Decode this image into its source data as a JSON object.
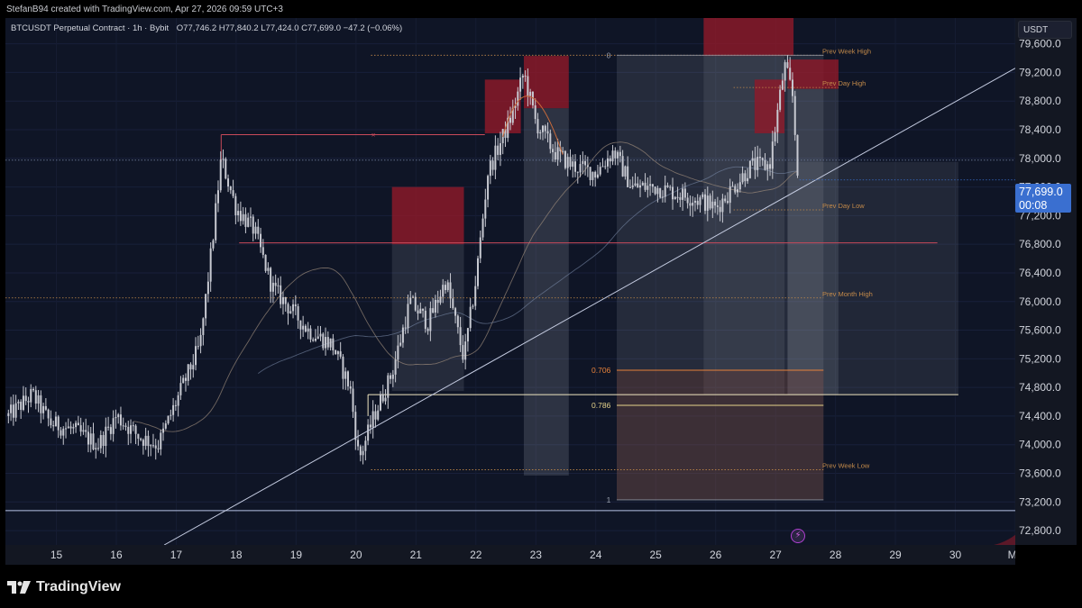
{
  "header": {
    "credit": "StefanB94 created with TradingView.com, Apr 27, 2026 09:59 UTC+3",
    "symbol": "BTCUSDT Perpetual Contract · 1h · Bybit",
    "ohlc": "O77,746.2  H77,840.2  L77,424.0  C77,699.0  −47.2 (−0.06%)"
  },
  "price_axis": {
    "currency": "USDT",
    "last_price": "77,699.0",
    "countdown": "00:08"
  },
  "footer": {
    "brand": "TradingView"
  },
  "colors": {
    "background": "#0f1526",
    "candle": "#c8cad2",
    "supply_zone": "#8e1a2a",
    "fib_orange": "#e8823a",
    "fib_yellow": "#e6d38a",
    "level_label": "#c38a4a",
    "trendline": "#c4cbe0"
  },
  "chart_data": {
    "type": "candlestick",
    "symbol": "BTCUSDT",
    "interval": "1h",
    "exchange": "Bybit",
    "ylim": [
      72600,
      79960
    ],
    "y_ticks": [
      72800,
      73200,
      73600,
      74000,
      74400,
      74800,
      75200,
      75600,
      76000,
      76400,
      76800,
      77200,
      77600,
      78000,
      78400,
      78800,
      79200,
      79600
    ],
    "y_tick_labels": [
      "72,800.0",
      "73,200.0",
      "73,600.0",
      "74,000.0",
      "74,400.0",
      "74,800.0",
      "75,200.0",
      "75,600.0",
      "76,000.0",
      "76,400.0",
      "76,800.0",
      "77,200.0",
      "77,600.0",
      "78,000.0",
      "78,400.0",
      "78,800.0",
      "79,200.0",
      "79,600.0"
    ],
    "xlim": [
      14.15,
      31.0
    ],
    "x_ticks": [
      15,
      16,
      17,
      18,
      19,
      20,
      21,
      22,
      23,
      24,
      25,
      26,
      27,
      28,
      29,
      30,
      31
    ],
    "x_tick_labels": [
      "15",
      "16",
      "17",
      "18",
      "19",
      "20",
      "21",
      "22",
      "23",
      "24",
      "25",
      "26",
      "27",
      "28",
      "29",
      "30",
      "Ma"
    ],
    "last_price": 77699.0,
    "daily_path": [
      [
        14.2,
        74400
      ],
      [
        14.6,
        74700
      ],
      [
        14.9,
        74300
      ],
      [
        15.3,
        74200
      ],
      [
        15.7,
        74000
      ],
      [
        16.0,
        74400
      ],
      [
        16.4,
        74100
      ],
      [
        16.7,
        74000
      ],
      [
        17.0,
        74600
      ],
      [
        17.4,
        75400
      ],
      [
        17.6,
        76800
      ],
      [
        17.75,
        78000
      ],
      [
        18.0,
        77300
      ],
      [
        18.3,
        77000
      ],
      [
        18.6,
        76200
      ],
      [
        18.9,
        75900
      ],
      [
        19.2,
        75600
      ],
      [
        19.6,
        75400
      ],
      [
        19.9,
        74800
      ],
      [
        20.05,
        73800
      ],
      [
        20.3,
        74400
      ],
      [
        20.6,
        75000
      ],
      [
        20.9,
        76000
      ],
      [
        21.2,
        75700
      ],
      [
        21.5,
        76300
      ],
      [
        21.8,
        75200
      ],
      [
        22.0,
        76300
      ],
      [
        22.2,
        77800
      ],
      [
        22.4,
        78200
      ],
      [
        22.6,
        78600
      ],
      [
        22.8,
        79200
      ],
      [
        23.0,
        78500
      ],
      [
        23.3,
        78100
      ],
      [
        23.6,
        77900
      ],
      [
        24.0,
        77800
      ],
      [
        24.3,
        78100
      ],
      [
        24.6,
        77600
      ],
      [
        25.0,
        77600
      ],
      [
        25.4,
        77500
      ],
      [
        25.8,
        77400
      ],
      [
        26.0,
        77300
      ],
      [
        26.3,
        77600
      ],
      [
        26.6,
        77900
      ],
      [
        26.9,
        77900
      ],
      [
        27.15,
        79300
      ],
      [
        27.28,
        78900
      ],
      [
        27.38,
        77700
      ]
    ],
    "horizontal_levels": [
      {
        "label": "Prev Week High",
        "price": 79440
      },
      {
        "label": "Prev Day High",
        "price": 78990
      },
      {
        "label": "Prev Day Low",
        "price": 77280
      },
      {
        "label": "Prev Month High",
        "price": 76050
      },
      {
        "label": "Prev Week Low",
        "price": 73650
      }
    ],
    "fibonacci": [
      {
        "label": "0",
        "price": 79440
      },
      {
        "label": "0.706",
        "price": 75040
      },
      {
        "label": "0.786",
        "price": 74550
      },
      {
        "label": "1",
        "price": 73230
      }
    ],
    "supply_zones": [
      {
        "x0": 20.6,
        "x1": 21.8,
        "y0": 76800,
        "y1": 77600
      },
      {
        "x0": 22.15,
        "x1": 22.75,
        "y0": 78350,
        "y1": 79100
      },
      {
        "x0": 22.8,
        "x1": 23.55,
        "y0": 78700,
        "y1": 79430
      },
      {
        "x0": 25.8,
        "x1": 27.3,
        "y0": 79430,
        "y1": 80050
      },
      {
        "x0": 26.65,
        "x1": 27.15,
        "y0": 78350,
        "y1": 79100
      },
      {
        "x0": 27.2,
        "x1": 28.05,
        "y0": 78970,
        "y1": 79380
      }
    ]
  }
}
